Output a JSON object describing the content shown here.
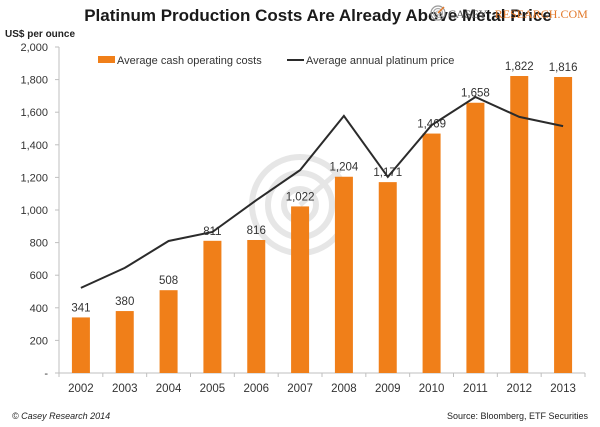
{
  "chart_data": {
    "type": "bar",
    "title": "Platinum Production Costs Are Already Above Metal Price",
    "ylabel": "US$ per ounce",
    "xlabel": "",
    "ylim": [
      0,
      2000
    ],
    "yticks": [
      0,
      200,
      400,
      600,
      800,
      1000,
      1200,
      1400,
      1600,
      1800,
      2000
    ],
    "ytick_labels": [
      "-",
      "200",
      "400",
      "600",
      "800",
      "1,000",
      "1,200",
      "1,400",
      "1,600",
      "1,800",
      "2,000"
    ],
    "grid": false,
    "legend_position": "top",
    "categories": [
      "2002",
      "2003",
      "2004",
      "2005",
      "2006",
      "2007",
      "2008",
      "2009",
      "2010",
      "2011",
      "2012",
      "2013"
    ],
    "series": [
      {
        "name": "Average cash operating costs",
        "kind": "bar",
        "color": "#f07f19",
        "values": [
          341,
          380,
          508,
          811,
          816,
          1022,
          1204,
          1171,
          1469,
          1658,
          1822,
          1816
        ],
        "labels": [
          "341",
          "380",
          "508",
          "811",
          "816",
          "1,022",
          "1,204",
          "1,171",
          "1,469",
          "1,658",
          "1,822",
          "1,816"
        ]
      },
      {
        "name": "Average annual platinum price",
        "kind": "line",
        "color": "#2b2b2b",
        "values": [
          522,
          645,
          810,
          865,
          1060,
          1245,
          1577,
          1203,
          1521,
          1693,
          1571,
          1515
        ]
      }
    ]
  },
  "branding": {
    "logo_part1": "Casey",
    "logo_part2": "Research.com"
  },
  "footer": {
    "copyright": "© Casey Research 2014",
    "source": "Source: Bloomberg, ETF Securities"
  }
}
